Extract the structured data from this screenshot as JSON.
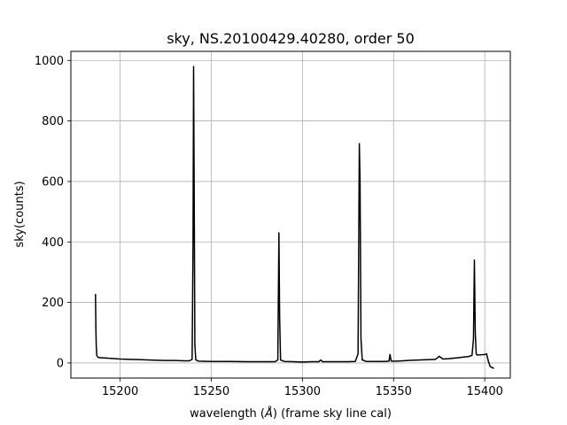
{
  "chart_data": {
    "type": "line",
    "title": "sky, NS.20100429.40280, order 50",
    "xlabel_prefix": "wavelength (",
    "xlabel_unit_italic": "Å",
    "xlabel_suffix": ") (frame sky line cal)",
    "ylabel": "sky(counts)",
    "xlim": [
      15173,
      15414
    ],
    "ylim": [
      -50,
      1030
    ],
    "xticks": [
      15200,
      15250,
      15300,
      15350,
      15400
    ],
    "yticks": [
      0,
      200,
      400,
      600,
      800,
      1000
    ],
    "grid": true,
    "series": [
      {
        "color": "#000000",
        "points": [
          [
            15186.5,
            228
          ],
          [
            15186.7,
            120
          ],
          [
            15186.9,
            60
          ],
          [
            15187.2,
            25
          ],
          [
            15188,
            18
          ],
          [
            15190,
            17
          ],
          [
            15195,
            15
          ],
          [
            15200,
            13
          ],
          [
            15205,
            12
          ],
          [
            15210,
            11
          ],
          [
            15215,
            10
          ],
          [
            15220,
            9
          ],
          [
            15225,
            8
          ],
          [
            15230,
            8
          ],
          [
            15235,
            7
          ],
          [
            15238,
            7
          ],
          [
            15239.5,
            12
          ],
          [
            15240,
            400
          ],
          [
            15240.3,
            980
          ],
          [
            15240.6,
            600
          ],
          [
            15241,
            60
          ],
          [
            15241.5,
            10
          ],
          [
            15243,
            6
          ],
          [
            15250,
            5
          ],
          [
            15260,
            5
          ],
          [
            15270,
            4
          ],
          [
            15280,
            4
          ],
          [
            15285,
            4
          ],
          [
            15286.5,
            10
          ],
          [
            15287.1,
            430
          ],
          [
            15287.5,
            150
          ],
          [
            15288,
            10
          ],
          [
            15290,
            5
          ],
          [
            15295,
            4
          ],
          [
            15300,
            3
          ],
          [
            15305,
            4
          ],
          [
            15309,
            4
          ],
          [
            15310,
            10
          ],
          [
            15311,
            4
          ],
          [
            15315,
            4
          ],
          [
            15320,
            4
          ],
          [
            15325,
            4
          ],
          [
            15329,
            5
          ],
          [
            15330.5,
            30
          ],
          [
            15331.2,
            725
          ],
          [
            15331.6,
            600
          ],
          [
            15332.1,
            80
          ],
          [
            15332.8,
            10
          ],
          [
            15335,
            5
          ],
          [
            15340,
            5
          ],
          [
            15345,
            5
          ],
          [
            15347.5,
            6
          ],
          [
            15348,
            28
          ],
          [
            15348.7,
            6
          ],
          [
            15352,
            6
          ],
          [
            15355,
            7
          ],
          [
            15360,
            9
          ],
          [
            15365,
            10
          ],
          [
            15370,
            11
          ],
          [
            15373,
            12
          ],
          [
            15375,
            22
          ],
          [
            15377,
            13
          ],
          [
            15380,
            14
          ],
          [
            15385,
            17
          ],
          [
            15388,
            19
          ],
          [
            15391,
            21
          ],
          [
            15393,
            25
          ],
          [
            15393.8,
            80
          ],
          [
            15394.3,
            340
          ],
          [
            15394.8,
            100
          ],
          [
            15395.3,
            30
          ],
          [
            15396,
            26
          ],
          [
            15398,
            27
          ],
          [
            15400,
            28
          ],
          [
            15401,
            30
          ],
          [
            15402,
            5
          ],
          [
            15403,
            -12
          ],
          [
            15404,
            -15
          ],
          [
            15405,
            -18
          ]
        ]
      }
    ]
  }
}
